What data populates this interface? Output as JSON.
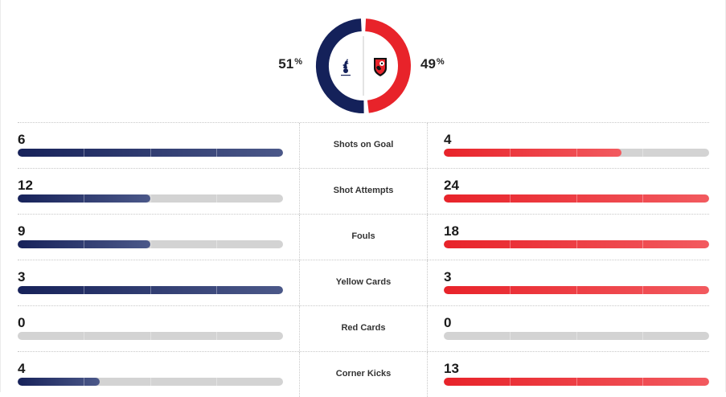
{
  "colors": {
    "home_primary": "#14215a",
    "away_primary": "#e8232a",
    "track": "#d3d3d3"
  },
  "possession": {
    "home": {
      "value": "51",
      "sign": "%",
      "fraction": 0.51,
      "crest_icon": "tottenham-crest-icon"
    },
    "away": {
      "value": "49",
      "sign": "%",
      "fraction": 0.49,
      "crest_icon": "bournemouth-crest-icon"
    }
  },
  "stats": [
    {
      "label": "Shots on Goal",
      "home": "6",
      "away": "4",
      "home_fill": 1.0,
      "away_fill": 0.67
    },
    {
      "label": "Shot Attempts",
      "home": "12",
      "away": "24",
      "home_fill": 0.5,
      "away_fill": 1.0
    },
    {
      "label": "Fouls",
      "home": "9",
      "away": "18",
      "home_fill": 0.5,
      "away_fill": 1.0
    },
    {
      "label": "Yellow Cards",
      "home": "3",
      "away": "3",
      "home_fill": 1.0,
      "away_fill": 1.0
    },
    {
      "label": "Red Cards",
      "home": "0",
      "away": "0",
      "home_fill": 0.0,
      "away_fill": 0.0
    },
    {
      "label": "Corner Kicks",
      "home": "4",
      "away": "13",
      "home_fill": 0.3077,
      "away_fill": 1.0
    }
  ]
}
